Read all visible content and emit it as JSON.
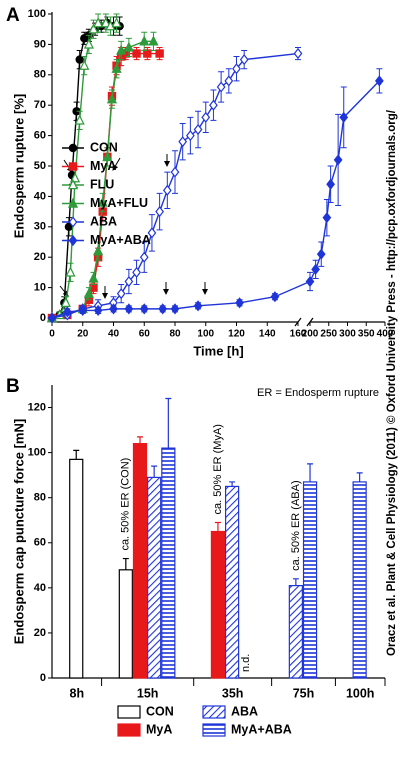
{
  "chart_data": [
    {
      "type": "line",
      "panel_label": "A",
      "ylabel": "Endosperm rupture [%]",
      "xlabel": "Time [h]",
      "xlim": [
        0,
        400
      ],
      "x_break": [
        160,
        200
      ],
      "ylim": [
        0,
        100
      ],
      "xticks": [
        0,
        20,
        40,
        60,
        80,
        100,
        120,
        140,
        160,
        200,
        250,
        300,
        350,
        400
      ],
      "yticks": [
        0,
        10,
        20,
        30,
        40,
        50,
        60,
        70,
        80,
        90,
        100
      ],
      "legend": "center-left",
      "series": [
        {
          "name": "CON",
          "color": "#000000",
          "marker": "circle",
          "filled": true,
          "x": [
            0,
            5,
            8,
            11,
            13,
            16,
            18,
            21,
            24,
            28,
            32,
            36,
            40,
            44
          ],
          "values": [
            0,
            1,
            5,
            30,
            47,
            68,
            85,
            92,
            93,
            95,
            96,
            97,
            96,
            96
          ],
          "errors": [
            0,
            1,
            2,
            3,
            3,
            3,
            3,
            2,
            2,
            2,
            2,
            2,
            3,
            3
          ]
        },
        {
          "name": "MyA",
          "color": "#e8191b",
          "marker": "square",
          "filled": true,
          "x": [
            0,
            10,
            20,
            24,
            27,
            30,
            33,
            36,
            39,
            42,
            45,
            48,
            55,
            62,
            70
          ],
          "values": [
            0,
            1,
            3,
            6,
            10,
            20,
            35,
            53,
            73,
            83,
            86,
            87,
            87,
            87,
            87
          ],
          "errors": [
            0,
            1,
            1,
            2,
            2,
            3,
            3,
            3,
            3,
            3,
            3,
            2,
            2,
            2,
            2
          ]
        },
        {
          "name": "FLU",
          "color": "#2e9a3a",
          "marker": "triangle",
          "filled": false,
          "x": [
            0,
            5,
            9,
            12,
            15,
            18,
            21,
            24,
            27,
            30,
            35,
            38,
            42
          ],
          "values": [
            0,
            1,
            5,
            15,
            46,
            65,
            83,
            90,
            95,
            97,
            97,
            96,
            97
          ],
          "errors": [
            0,
            1,
            2,
            3,
            3,
            3,
            3,
            3,
            3,
            3,
            3,
            3,
            3
          ]
        },
        {
          "name": "MyA+FLU",
          "color": "#2e9a3a",
          "marker": "triangle",
          "filled": true,
          "x": [
            0,
            20,
            24,
            27,
            30,
            33,
            36,
            39,
            42,
            45,
            50,
            60,
            66
          ],
          "values": [
            0,
            3,
            8,
            13,
            22,
            38,
            53,
            72,
            82,
            88,
            89,
            91,
            91
          ],
          "errors": [
            0,
            1,
            2,
            2,
            3,
            3,
            3,
            3,
            3,
            3,
            3,
            3,
            3
          ]
        },
        {
          "name": "ABA",
          "color": "#1f35d8",
          "marker": "diamond",
          "filled": false,
          "x": [
            0,
            10,
            20,
            30,
            40,
            45,
            50,
            55,
            60,
            65,
            70,
            75,
            80,
            85,
            90,
            95,
            100,
            105,
            110,
            115,
            120,
            125,
            160
          ],
          "values": [
            0,
            1,
            3,
            4,
            5,
            8,
            12,
            15,
            20,
            28,
            35,
            42,
            48,
            58,
            60,
            62,
            66,
            70,
            76,
            78,
            82,
            85,
            87
          ],
          "errors": [
            0,
            1,
            1,
            2,
            2,
            3,
            4,
            4,
            5,
            6,
            6,
            6,
            7,
            6,
            6,
            6,
            5,
            5,
            5,
            4,
            4,
            3,
            2
          ]
        },
        {
          "name": "MyA+ABA",
          "color": "#1f35d8",
          "marker": "diamond",
          "filled": true,
          "x": [
            0,
            10,
            20,
            30,
            40,
            50,
            60,
            72,
            80,
            95,
            122,
            145,
            200,
            215,
            230,
            245,
            255,
            275,
            290,
            385
          ],
          "values": [
            0,
            2,
            2.5,
            2.5,
            3,
            3,
            3,
            3,
            3,
            4,
            5,
            7,
            12,
            16,
            21,
            33,
            44,
            52,
            66,
            78
          ],
          "errors": [
            0,
            1,
            1,
            1,
            1,
            1,
            1,
            1,
            1,
            1,
            1,
            1,
            3,
            3,
            4,
            6,
            6,
            15,
            10,
            4
          ]
        }
      ]
    },
    {
      "type": "bar",
      "panel_label": "B",
      "ylabel": "Endosperm cap puncture force [mN]",
      "note": "ER = Endosperm rupture",
      "categories": [
        "8h",
        "15h",
        "35h",
        "75h",
        "100h"
      ],
      "ylim": [
        0,
        130
      ],
      "yticks": [
        0,
        20,
        40,
        60,
        80,
        100,
        120
      ],
      "legend": "bottom",
      "series": [
        {
          "name": "CON",
          "color": "#000000",
          "fill": "none",
          "values": [
            97,
            48,
            null,
            null,
            null
          ],
          "errors": [
            4,
            5,
            null,
            null,
            null
          ]
        },
        {
          "name": "MyA",
          "color": "#e8191b",
          "fill": "solid",
          "values": [
            null,
            104,
            65,
            null,
            null
          ],
          "errors": [
            null,
            3,
            4,
            null,
            null
          ]
        },
        {
          "name": "ABA",
          "color": "#1f35d8",
          "fill": "diagonal",
          "values": [
            null,
            89,
            85,
            41,
            null
          ],
          "errors": [
            null,
            5,
            2,
            3,
            null
          ]
        },
        {
          "name": "MyA+ABA",
          "color": "#1f35d8",
          "fill": "horizontal",
          "values": [
            null,
            102,
            null,
            87,
            87
          ],
          "errors": [
            null,
            22,
            null,
            8,
            4
          ],
          "value_labels": [
            null,
            null,
            "n.d.",
            null,
            null
          ]
        }
      ],
      "annotations": [
        {
          "text": "ca. 50% ER (CON)",
          "series": "CON",
          "category": "15h"
        },
        {
          "text": "ca. 50% ER (MyA)",
          "series": "MyA",
          "category": "35h"
        },
        {
          "text": "ca. 50% ER (ABA)",
          "series": "ABA",
          "category": "75h"
        }
      ]
    }
  ],
  "side_text": "Oracz et al. Plant & Cell Physiology (2011) © Oxford University Press - http://pcp.oxfordjournals.org/"
}
